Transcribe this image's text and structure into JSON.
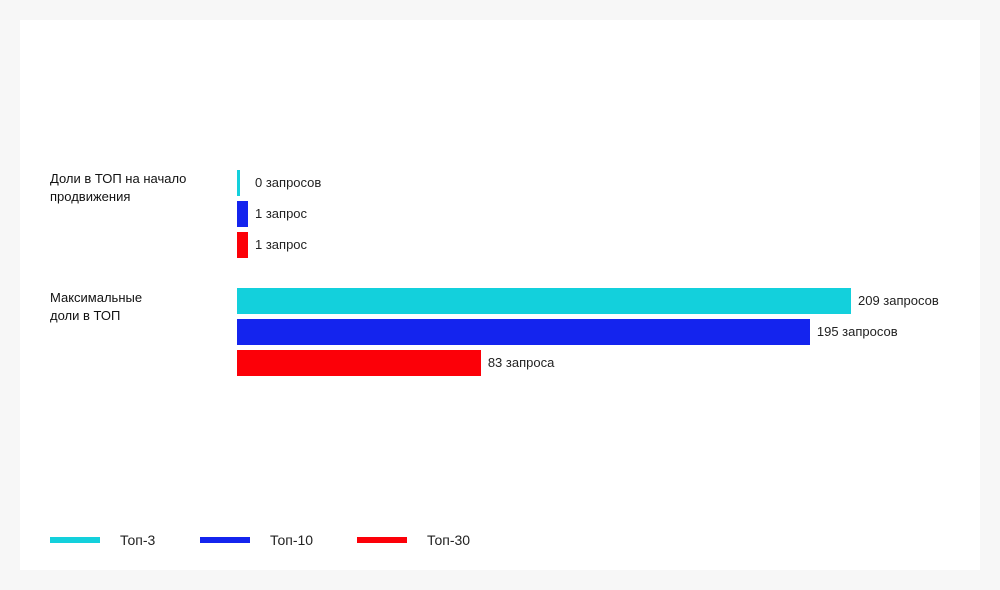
{
  "chart_data": {
    "type": "bar",
    "orientation": "horizontal",
    "groups": [
      {
        "label": "Доли в ТОП на начало продвижения",
        "bars": [
          {
            "series": "Топ-3",
            "value": 0,
            "text": "0 запросов"
          },
          {
            "series": "Топ-10",
            "value": 1,
            "text": "1 запрос"
          },
          {
            "series": "Топ-30",
            "value": 1,
            "text": "1 запрос"
          }
        ]
      },
      {
        "label": "Максимальные доли в ТОП",
        "bars": [
          {
            "series": "Топ-3",
            "value": 209,
            "text": "209 запросов"
          },
          {
            "series": "Топ-10",
            "value": 195,
            "text": "195 запросов"
          },
          {
            "series": "Топ-30",
            "value": 83,
            "text": "83 запроса"
          }
        ]
      }
    ],
    "series": [
      {
        "name": "Топ-3",
        "color": "#13d0dc"
      },
      {
        "name": "Топ-10",
        "color": "#1424ee"
      },
      {
        "name": "Топ-30",
        "color": "#fc0008"
      }
    ],
    "xlim": [
      0,
      209
    ],
    "legend_position": "bottom",
    "grid": false
  }
}
